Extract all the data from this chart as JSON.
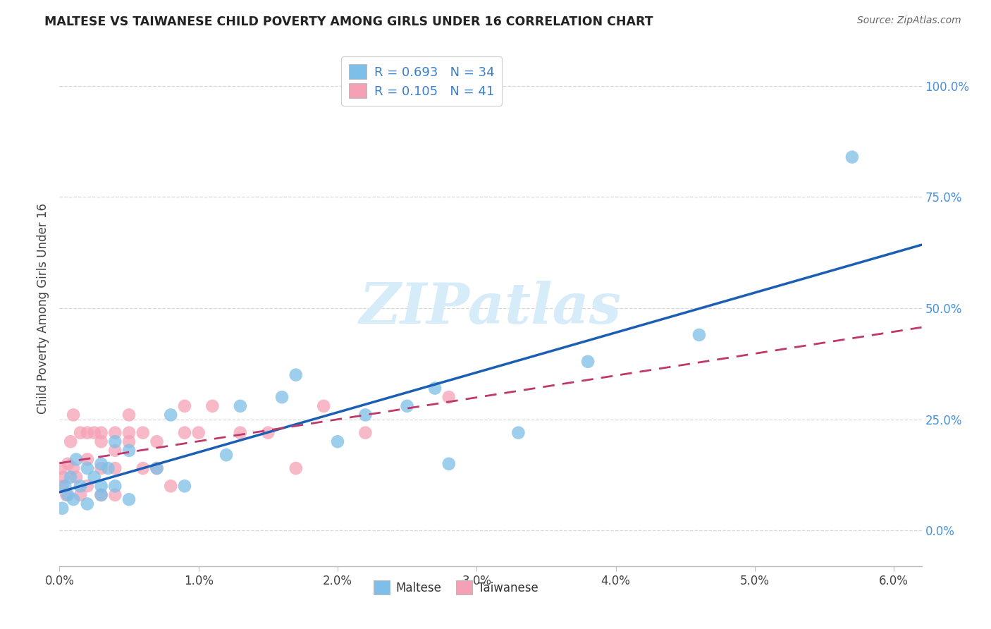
{
  "title": "MALTESE VS TAIWANESE CHILD POVERTY AMONG GIRLS UNDER 16 CORRELATION CHART",
  "source": "Source: ZipAtlas.com",
  "ylabel_label": "Child Poverty Among Girls Under 16",
  "maltese_R": 0.693,
  "maltese_N": 34,
  "taiwanese_R": 0.105,
  "taiwanese_N": 41,
  "maltese_color": "#7dbfe8",
  "taiwanese_color": "#f5a0b5",
  "maltese_line_color": "#1a5fb4",
  "taiwanese_line_color": "#c0396b",
  "background_color": "#ffffff",
  "grid_color": "#d8d8d8",
  "xlim": [
    0.0,
    0.062
  ],
  "ylim": [
    -0.08,
    1.08
  ],
  "xticks": [
    0.0,
    0.01,
    0.02,
    0.03,
    0.04,
    0.05,
    0.06
  ],
  "xtick_labels": [
    "0.0%",
    "1.0%",
    "2.0%",
    "3.0%",
    "4.0%",
    "5.0%",
    "6.0%"
  ],
  "yticks": [
    0.0,
    0.25,
    0.5,
    0.75,
    1.0
  ],
  "ytick_labels": [
    "0.0%",
    "25.0%",
    "50.0%",
    "75.0%",
    "100.0%"
  ],
  "maltese_x": [
    0.0002,
    0.0004,
    0.0006,
    0.0008,
    0.001,
    0.0012,
    0.0015,
    0.002,
    0.002,
    0.0025,
    0.003,
    0.003,
    0.003,
    0.0035,
    0.004,
    0.004,
    0.005,
    0.005,
    0.007,
    0.008,
    0.009,
    0.012,
    0.013,
    0.016,
    0.017,
    0.02,
    0.022,
    0.025,
    0.027,
    0.028,
    0.033,
    0.038,
    0.046,
    0.057
  ],
  "maltese_y": [
    0.05,
    0.1,
    0.08,
    0.12,
    0.07,
    0.16,
    0.1,
    0.06,
    0.14,
    0.12,
    0.1,
    0.08,
    0.15,
    0.14,
    0.1,
    0.2,
    0.07,
    0.18,
    0.14,
    0.26,
    0.1,
    0.17,
    0.28,
    0.3,
    0.35,
    0.2,
    0.26,
    0.28,
    0.32,
    0.15,
    0.22,
    0.38,
    0.44,
    0.84
  ],
  "taiwanese_x": [
    0.0001,
    0.0002,
    0.0003,
    0.0005,
    0.0006,
    0.0008,
    0.001,
    0.001,
    0.0012,
    0.0015,
    0.0015,
    0.002,
    0.002,
    0.002,
    0.0025,
    0.003,
    0.003,
    0.003,
    0.003,
    0.004,
    0.004,
    0.004,
    0.004,
    0.005,
    0.005,
    0.005,
    0.006,
    0.006,
    0.007,
    0.007,
    0.008,
    0.009,
    0.009,
    0.01,
    0.011,
    0.013,
    0.015,
    0.017,
    0.019,
    0.022,
    0.028
  ],
  "taiwanese_y": [
    0.14,
    0.1,
    0.12,
    0.08,
    0.15,
    0.2,
    0.14,
    0.26,
    0.12,
    0.08,
    0.22,
    0.16,
    0.22,
    0.1,
    0.22,
    0.22,
    0.2,
    0.14,
    0.08,
    0.22,
    0.18,
    0.14,
    0.08,
    0.22,
    0.2,
    0.26,
    0.14,
    0.22,
    0.2,
    0.14,
    0.1,
    0.22,
    0.28,
    0.22,
    0.28,
    0.22,
    0.22,
    0.14,
    0.28,
    0.22,
    0.3
  ]
}
